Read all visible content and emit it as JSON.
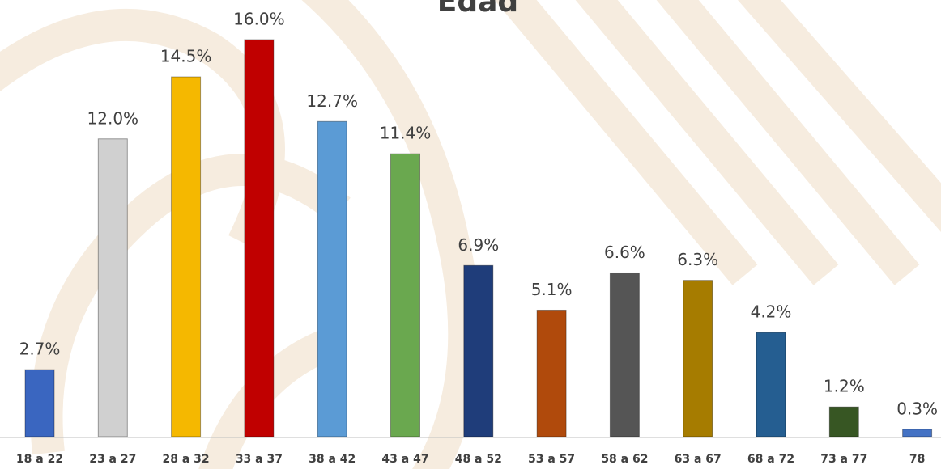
{
  "chart_data": {
    "type": "bar",
    "title": "Edad",
    "categories": [
      "18 a 22",
      "23 a 27",
      "28 a 32",
      "33 a 37",
      "38 a 42",
      "43 a 47",
      "48 a 52",
      "53 a 57",
      "58 a 62",
      "63 a 67",
      "68 a 72",
      "73 a 77",
      "78"
    ],
    "values": [
      2.7,
      12.0,
      14.5,
      16.0,
      12.7,
      11.4,
      6.9,
      5.1,
      6.6,
      6.3,
      4.2,
      1.2,
      0.3
    ],
    "value_labels": [
      "2.7%",
      "12.0%",
      "14.5%",
      "16.0%",
      "12.7%",
      "11.4%",
      "6.9%",
      "5.1%",
      "6.6%",
      "6.3%",
      "4.2%",
      "1.2%",
      "0.3%"
    ],
    "colors": [
      "#3a66c0",
      "#d0d0d0",
      "#f5b800",
      "#c00000",
      "#5b9bd5",
      "#6aa84f",
      "#1f3d7a",
      "#b04a0c",
      "#555555",
      "#a67c00",
      "#255e91",
      "#375623",
      "#4472c4"
    ]
  }
}
